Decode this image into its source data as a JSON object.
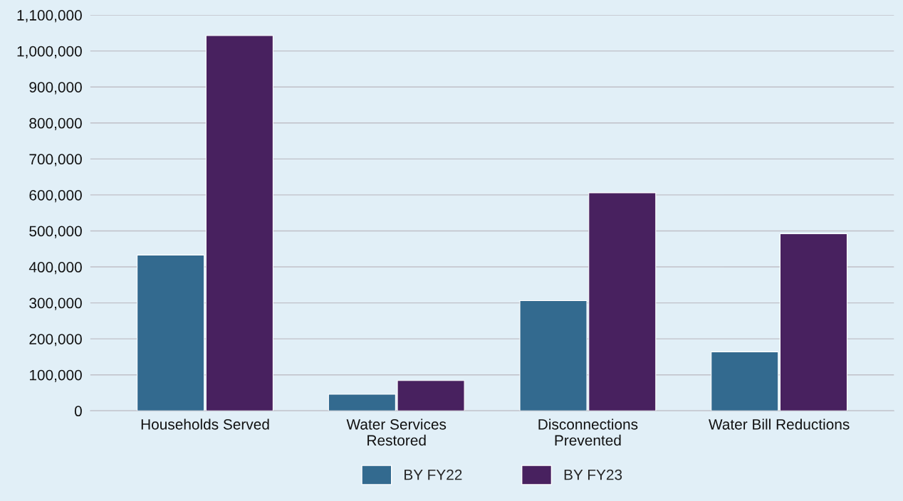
{
  "chart_data": {
    "type": "bar",
    "categories": [
      "Households Served",
      "Water Services\nRestored",
      "Disconnections\nPrevented",
      "Water Bill Reductions"
    ],
    "series": [
      {
        "name": "BY FY22",
        "color": "#336a8f",
        "values": [
          433000,
          46000,
          306000,
          164000
        ]
      },
      {
        "name": "BY FY23",
        "color": "#48215f",
        "values": [
          1043000,
          84000,
          606000,
          492000
        ]
      }
    ],
    "ylim": [
      0,
      1100000
    ],
    "yticks": [
      {
        "value": 0,
        "label": "0"
      },
      {
        "value": 100000,
        "label": "100,000"
      },
      {
        "value": 200000,
        "label": "200,000"
      },
      {
        "value": 300000,
        "label": "300,000"
      },
      {
        "value": 400000,
        "label": "400,000"
      },
      {
        "value": 500000,
        "label": "500,000"
      },
      {
        "value": 600000,
        "label": "600,000"
      },
      {
        "value": 700000,
        "label": "700,000"
      },
      {
        "value": 800000,
        "label": "800,000"
      },
      {
        "value": 900000,
        "label": "900,000"
      },
      {
        "value": 1000000,
        "label": "1,000,000"
      },
      {
        "value": 1100000,
        "label": "1,100,000"
      }
    ],
    "grid": "y",
    "legend": "bottom"
  }
}
